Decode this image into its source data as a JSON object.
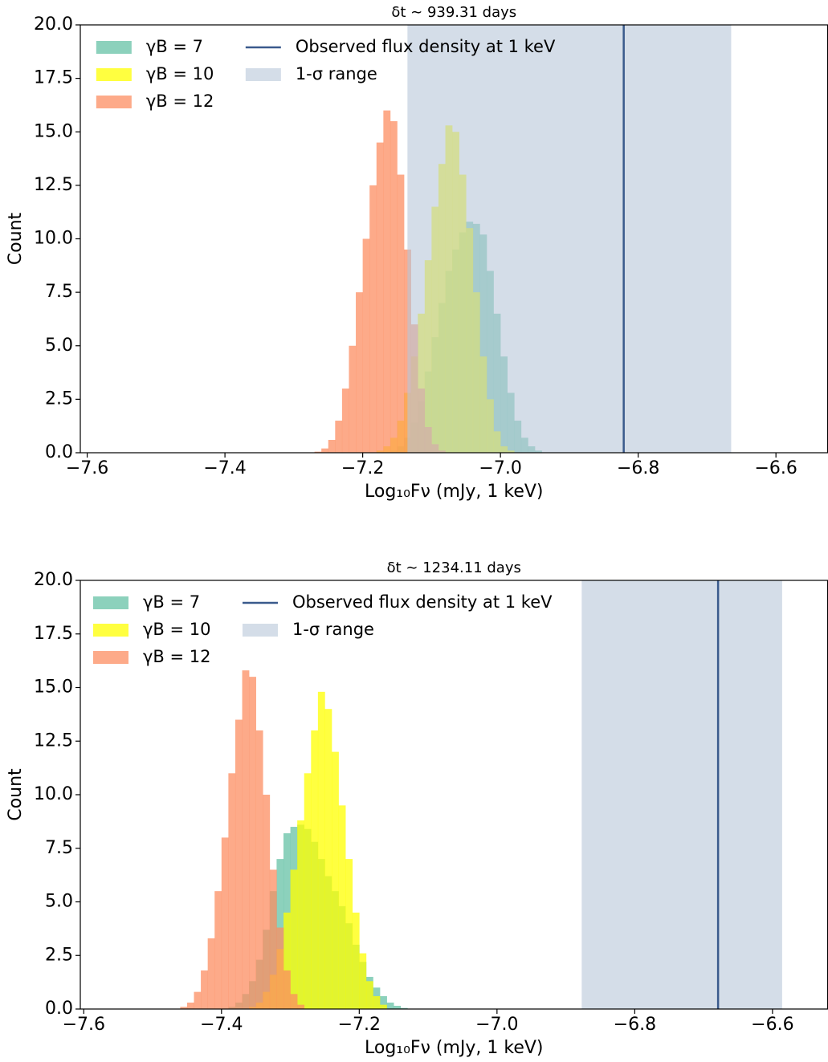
{
  "chart_data": [
    {
      "type": "histogram",
      "title": "δt ∼ 939.31 days",
      "x_label": "Log₁₀Fν (mJy, 1 keV)",
      "y_label": "Count",
      "xlim": [
        -7.61,
        -6.525
      ],
      "ylim": [
        0,
        20
      ],
      "xticks": [
        {
          "value": -7.6,
          "label": "−7.6"
        },
        {
          "value": -7.4,
          "label": "−7.4"
        },
        {
          "value": -7.2,
          "label": "−7.2"
        },
        {
          "value": -7.0,
          "label": "−7.0"
        },
        {
          "value": -6.8,
          "label": "−6.8"
        },
        {
          "value": -6.6,
          "label": "−6.6"
        }
      ],
      "yticks": [
        {
          "value": 0,
          "label": "0.0"
        },
        {
          "value": 2.5,
          "label": "2.5"
        },
        {
          "value": 5,
          "label": "5.0"
        },
        {
          "value": 7.5,
          "label": "7.5"
        },
        {
          "value": 10,
          "label": "10.0"
        },
        {
          "value": 12.5,
          "label": "12.5"
        },
        {
          "value": 15,
          "label": "15.0"
        },
        {
          "value": 17.5,
          "label": "17.5"
        },
        {
          "value": 20,
          "label": "20.0"
        }
      ],
      "series": [
        {
          "name": "γB = 7",
          "color": "#66c2a5",
          "bins": [
            -7.16,
            -7.15,
            -7.14,
            -7.13,
            -7.12,
            -7.11,
            -7.1,
            -7.09,
            -7.08,
            -7.07,
            -7.06,
            -7.05,
            -7.04,
            -7.03,
            -7.02,
            -7.01,
            -7.0,
            -6.99,
            -6.98,
            -6.97,
            -6.96,
            -6.95,
            -6.94
          ],
          "counts": [
            0.1,
            0.3,
            0.7,
            1.4,
            2.4,
            3.8,
            5.4,
            7.0,
            8.5,
            9.5,
            10.3,
            10.8,
            10.7,
            10.2,
            8.5,
            6.5,
            4.5,
            2.8,
            1.5,
            0.7,
            0.3,
            0.1
          ]
        },
        {
          "name": "γB = 10",
          "color": "#ffff00",
          "bins": [
            -7.18,
            -7.17,
            -7.16,
            -7.15,
            -7.14,
            -7.13,
            -7.12,
            -7.11,
            -7.1,
            -7.09,
            -7.08,
            -7.07,
            -7.06,
            -7.05,
            -7.04,
            -7.03,
            -7.02,
            -7.01,
            -7.0,
            -6.99,
            -6.98
          ],
          "counts": [
            0.1,
            0.3,
            0.7,
            1.5,
            2.8,
            4.5,
            6.5,
            9.0,
            11.5,
            13.5,
            15.3,
            15.0,
            13.0,
            10.5,
            7.5,
            4.5,
            2.5,
            1.0,
            0.3,
            0.1
          ]
        },
        {
          "name": "γB = 12",
          "color": "#fc8d62",
          "bins": [
            -7.27,
            -7.26,
            -7.25,
            -7.24,
            -7.23,
            -7.22,
            -7.21,
            -7.2,
            -7.19,
            -7.18,
            -7.17,
            -7.16,
            -7.15,
            -7.14,
            -7.13,
            -7.12,
            -7.11,
            -7.1,
            -7.09,
            -7.08
          ],
          "counts": [
            0.05,
            0.2,
            0.6,
            1.5,
            3.0,
            5.0,
            7.5,
            10.0,
            12.5,
            14.5,
            16.0,
            15.5,
            13.0,
            9.5,
            6.0,
            3.0,
            1.2,
            0.4,
            0.1
          ]
        }
      ],
      "observed": {
        "label": "Observed flux density at 1 keV",
        "value": -6.821,
        "color": "#3a5a8c"
      },
      "range": {
        "label": "1-σ range",
        "xmin": -7.135,
        "xmax": -6.665,
        "color": "#b8c6d8"
      }
    },
    {
      "type": "histogram",
      "title": "δt ∼ 1234.11 days",
      "x_label": "Log₁₀Fν (mJy, 1 keV)",
      "y_label": "Count",
      "xlim": [
        -7.605,
        -6.52
      ],
      "ylim": [
        0,
        20
      ],
      "xticks": [
        {
          "value": -7.6,
          "label": "−7.6"
        },
        {
          "value": -7.4,
          "label": "−7.4"
        },
        {
          "value": -7.2,
          "label": "−7.2"
        },
        {
          "value": -7.0,
          "label": "−7.0"
        },
        {
          "value": -6.8,
          "label": "−6.8"
        },
        {
          "value": -6.6,
          "label": "−6.6"
        }
      ],
      "yticks": [
        {
          "value": 0,
          "label": "0.0"
        },
        {
          "value": 2.5,
          "label": "2.5"
        },
        {
          "value": 5,
          "label": "5.0"
        },
        {
          "value": 7.5,
          "label": "7.5"
        },
        {
          "value": 10,
          "label": "10.0"
        },
        {
          "value": 12.5,
          "label": "12.5"
        },
        {
          "value": 15,
          "label": "15.0"
        },
        {
          "value": 17.5,
          "label": "17.5"
        },
        {
          "value": 20,
          "label": "20.0"
        }
      ],
      "series": [
        {
          "name": "γB = 7",
          "color": "#66c2a5",
          "bins": [
            -7.39,
            -7.38,
            -7.37,
            -7.36,
            -7.35,
            -7.34,
            -7.33,
            -7.32,
            -7.31,
            -7.3,
            -7.29,
            -7.28,
            -7.27,
            -7.26,
            -7.25,
            -7.24,
            -7.23,
            -7.22,
            -7.21,
            -7.2,
            -7.19,
            -7.18,
            -7.17,
            -7.16,
            -7.15,
            -7.14,
            -7.13
          ],
          "counts": [
            0.1,
            0.3,
            0.7,
            1.3,
            2.3,
            3.7,
            5.5,
            7.0,
            8.2,
            8.5,
            8.6,
            8.4,
            7.8,
            7.0,
            6.2,
            5.5,
            4.8,
            4.0,
            3.0,
            2.2,
            1.5,
            1.0,
            0.6,
            0.3,
            0.15,
            0.05
          ]
        },
        {
          "name": "γB = 10",
          "color": "#ffff00",
          "bins": [
            -7.36,
            -7.35,
            -7.34,
            -7.33,
            -7.32,
            -7.31,
            -7.3,
            -7.29,
            -7.28,
            -7.27,
            -7.26,
            -7.25,
            -7.24,
            -7.23,
            -7.22,
            -7.21,
            -7.2,
            -7.19,
            -7.18,
            -7.17,
            -7.16
          ],
          "counts": [
            0.1,
            0.3,
            0.8,
            1.6,
            2.8,
            4.5,
            6.5,
            8.8,
            11.0,
            13.0,
            14.8,
            14.0,
            12.0,
            9.5,
            7.0,
            4.5,
            2.6,
            1.3,
            0.6,
            0.2
          ]
        },
        {
          "name": "γB = 12",
          "color": "#fc8d62",
          "bins": [
            -7.46,
            -7.45,
            -7.44,
            -7.43,
            -7.42,
            -7.41,
            -7.4,
            -7.39,
            -7.38,
            -7.37,
            -7.36,
            -7.35,
            -7.34,
            -7.33,
            -7.32,
            -7.31,
            -7.3,
            -7.29,
            -7.28
          ],
          "counts": [
            0.1,
            0.3,
            0.8,
            1.8,
            3.3,
            5.5,
            8.0,
            11.0,
            13.5,
            15.8,
            15.5,
            13.0,
            10.0,
            6.5,
            3.8,
            1.8,
            0.7,
            0.2
          ]
        }
      ],
      "observed": {
        "label": "Observed flux density at 1 keV",
        "value": -6.679,
        "color": "#3a5a8c"
      },
      "range": {
        "label": "1-σ range",
        "xmin": -6.877,
        "xmax": -6.586,
        "color": "#b8c6d8"
      }
    }
  ]
}
